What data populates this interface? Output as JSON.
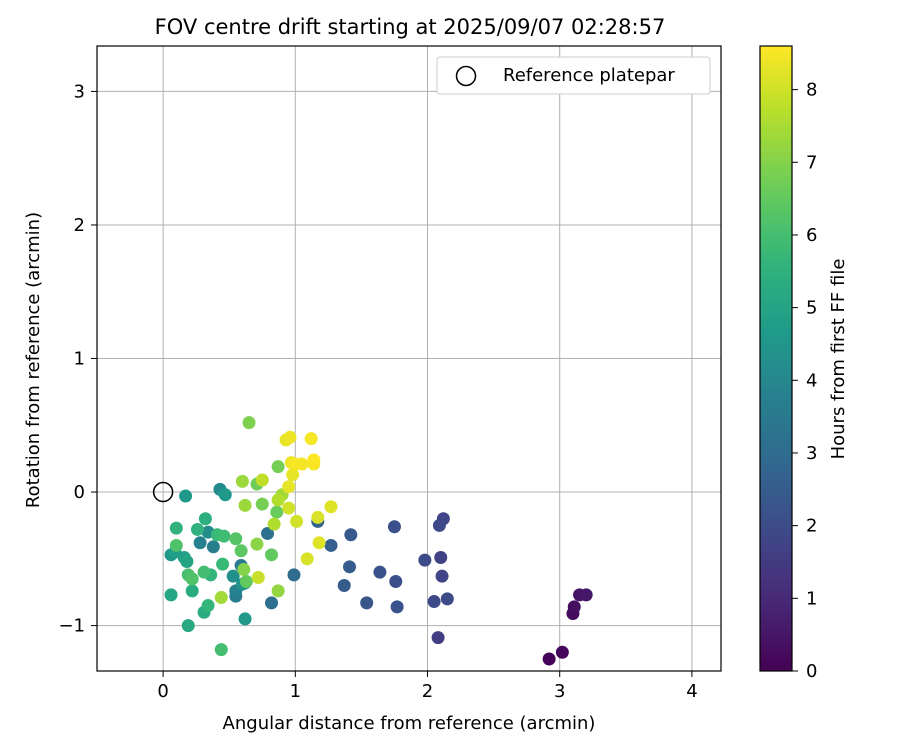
{
  "chart_data": {
    "type": "scatter",
    "title": "FOV centre drift starting at 2025/09/07 02:28:57",
    "xlabel": "Angular distance from reference (arcmin)",
    "ylabel": "Rotation from reference (arcmin)",
    "xlim": [
      -0.5,
      4.22
    ],
    "ylim": [
      -1.34,
      3.34
    ],
    "xticks": [
      0,
      1,
      2,
      3,
      4
    ],
    "xtick_labels": [
      "0",
      "1",
      "2",
      "3",
      "4"
    ],
    "yticks": [
      -1,
      0,
      1,
      2,
      3
    ],
    "ytick_labels": [
      "−1",
      "0",
      "1",
      "2",
      "3"
    ],
    "grid": true,
    "legend": {
      "position": "top-right",
      "entries": [
        "Reference platepar"
      ]
    },
    "reference_point": {
      "x": 0,
      "y": 0,
      "label": "Reference platepar"
    },
    "colorbar": {
      "label": "Hours from first FF file",
      "min": 0,
      "max": 8.6,
      "ticks": [
        0,
        1,
        2,
        3,
        4,
        5,
        6,
        7,
        8
      ],
      "tick_labels": [
        "0",
        "1",
        "2",
        "3",
        "4",
        "5",
        "6",
        "7",
        "8"
      ],
      "colormap": "viridis"
    },
    "points": [
      {
        "x": 2.92,
        "y": -1.25,
        "c": 0.05
      },
      {
        "x": 3.02,
        "y": -1.2,
        "c": 0.15
      },
      {
        "x": 3.1,
        "y": -0.91,
        "c": 0.25
      },
      {
        "x": 3.11,
        "y": -0.86,
        "c": 0.35
      },
      {
        "x": 3.15,
        "y": -0.77,
        "c": 0.45
      },
      {
        "x": 3.2,
        "y": -0.77,
        "c": 0.55
      },
      {
        "x": 2.08,
        "y": -1.09,
        "c": 1.6
      },
      {
        "x": 2.12,
        "y": -0.2,
        "c": 1.8
      },
      {
        "x": 2.09,
        "y": -0.25,
        "c": 1.9
      },
      {
        "x": 2.1,
        "y": -0.49,
        "c": 1.7
      },
      {
        "x": 2.11,
        "y": -0.63,
        "c": 1.8
      },
      {
        "x": 2.05,
        "y": -0.82,
        "c": 1.9
      },
      {
        "x": 2.15,
        "y": -0.8,
        "c": 2.0
      },
      {
        "x": 1.98,
        "y": -0.51,
        "c": 2.0
      },
      {
        "x": 1.75,
        "y": -0.26,
        "c": 2.1
      },
      {
        "x": 1.76,
        "y": -0.67,
        "c": 2.1
      },
      {
        "x": 1.77,
        "y": -0.86,
        "c": 2.2
      },
      {
        "x": 1.64,
        "y": -0.6,
        "c": 2.2
      },
      {
        "x": 1.54,
        "y": -0.83,
        "c": 2.3
      },
      {
        "x": 1.42,
        "y": -0.32,
        "c": 2.4
      },
      {
        "x": 1.41,
        "y": -0.56,
        "c": 2.5
      },
      {
        "x": 1.37,
        "y": -0.7,
        "c": 2.5
      },
      {
        "x": 1.27,
        "y": -0.4,
        "c": 2.6
      },
      {
        "x": 1.17,
        "y": -0.22,
        "c": 2.7
      },
      {
        "x": 0.99,
        "y": -0.62,
        "c": 3.0
      },
      {
        "x": 0.82,
        "y": -0.83,
        "c": 3.1
      },
      {
        "x": 0.79,
        "y": -0.31,
        "c": 3.2
      },
      {
        "x": 0.62,
        "y": -0.68,
        "c": 3.4
      },
      {
        "x": 0.59,
        "y": -0.55,
        "c": 3.5
      },
      {
        "x": 0.55,
        "y": -0.78,
        "c": 3.6
      },
      {
        "x": 0.55,
        "y": -0.74,
        "c": 3.8
      },
      {
        "x": 0.38,
        "y": -0.41,
        "c": 3.7
      },
      {
        "x": 0.28,
        "y": -0.38,
        "c": 3.8
      },
      {
        "x": 0.43,
        "y": 0.02,
        "c": 4.1
      },
      {
        "x": 0.34,
        "y": -0.3,
        "c": 4.2
      },
      {
        "x": 0.53,
        "y": -0.63,
        "c": 4.3
      },
      {
        "x": 0.6,
        "y": -0.69,
        "c": 4.4
      },
      {
        "x": 0.62,
        "y": -0.95,
        "c": 4.6
      },
      {
        "x": 0.47,
        "y": -0.02,
        "c": 4.6
      },
      {
        "x": 0.17,
        "y": -0.03,
        "c": 4.6
      },
      {
        "x": 0.06,
        "y": -0.47,
        "c": 4.6
      },
      {
        "x": 0.09,
        "y": -0.45,
        "c": 4.8
      },
      {
        "x": 0.16,
        "y": -0.49,
        "c": 4.9
      },
      {
        "x": 0.18,
        "y": -0.52,
        "c": 5.0
      },
      {
        "x": 0.06,
        "y": -0.77,
        "c": 5.1
      },
      {
        "x": 0.19,
        "y": -1.0,
        "c": 5.2
      },
      {
        "x": 0.31,
        "y": -0.9,
        "c": 5.3
      },
      {
        "x": 0.22,
        "y": -0.74,
        "c": 5.3
      },
      {
        "x": 0.32,
        "y": -0.2,
        "c": 5.4
      },
      {
        "x": 0.1,
        "y": -0.27,
        "c": 5.5
      },
      {
        "x": 0.26,
        "y": -0.28,
        "c": 5.5
      },
      {
        "x": 0.36,
        "y": -0.62,
        "c": 5.6
      },
      {
        "x": 0.34,
        "y": -0.85,
        "c": 5.7
      },
      {
        "x": 0.45,
        "y": -0.54,
        "c": 5.8
      },
      {
        "x": 0.41,
        "y": -0.32,
        "c": 5.8
      },
      {
        "x": 0.46,
        "y": -0.33,
        "c": 5.9
      },
      {
        "x": 0.44,
        "y": -1.18,
        "c": 6.0
      },
      {
        "x": 0.31,
        "y": -0.6,
        "c": 6.0
      },
      {
        "x": 0.19,
        "y": -0.62,
        "c": 6.1
      },
      {
        "x": 0.22,
        "y": -0.65,
        "c": 6.2
      },
      {
        "x": 0.1,
        "y": -0.4,
        "c": 6.2
      },
      {
        "x": 0.55,
        "y": -0.35,
        "c": 6.3
      },
      {
        "x": 0.59,
        "y": -0.44,
        "c": 6.4
      },
      {
        "x": 0.63,
        "y": -0.67,
        "c": 6.5
      },
      {
        "x": 0.82,
        "y": -0.47,
        "c": 6.5
      },
      {
        "x": 0.86,
        "y": -0.15,
        "c": 6.6
      },
      {
        "x": 0.71,
        "y": 0.06,
        "c": 6.7
      },
      {
        "x": 0.75,
        "y": -0.09,
        "c": 6.8
      },
      {
        "x": 0.87,
        "y": 0.19,
        "c": 6.8
      },
      {
        "x": 0.65,
        "y": 0.52,
        "c": 6.9
      },
      {
        "x": 0.61,
        "y": -0.58,
        "c": 7.0
      },
      {
        "x": 0.71,
        "y": -0.39,
        "c": 7.1
      },
      {
        "x": 0.87,
        "y": -0.74,
        "c": 7.2
      },
      {
        "x": 0.6,
        "y": 0.08,
        "c": 7.3
      },
      {
        "x": 0.62,
        "y": -0.1,
        "c": 7.3
      },
      {
        "x": 0.44,
        "y": -0.79,
        "c": 7.4
      },
      {
        "x": 0.9,
        "y": -0.02,
        "c": 7.4
      },
      {
        "x": 0.84,
        "y": -0.24,
        "c": 7.6
      },
      {
        "x": 0.87,
        "y": -0.06,
        "c": 7.6
      },
      {
        "x": 0.75,
        "y": 0.09,
        "c": 7.8
      },
      {
        "x": 0.72,
        "y": -0.64,
        "c": 7.9
      },
      {
        "x": 0.95,
        "y": -0.12,
        "c": 8.0
      },
      {
        "x": 1.01,
        "y": -0.22,
        "c": 8.0
      },
      {
        "x": 1.09,
        "y": -0.5,
        "c": 8.1
      },
      {
        "x": 1.17,
        "y": -0.19,
        "c": 8.1
      },
      {
        "x": 1.18,
        "y": -0.38,
        "c": 8.2
      },
      {
        "x": 1.27,
        "y": -0.11,
        "c": 8.2
      },
      {
        "x": 0.95,
        "y": 0.04,
        "c": 8.3
      },
      {
        "x": 0.98,
        "y": 0.13,
        "c": 8.3
      },
      {
        "x": 0.93,
        "y": 0.39,
        "c": 8.3
      },
      {
        "x": 0.96,
        "y": 0.41,
        "c": 8.4
      },
      {
        "x": 0.97,
        "y": 0.22,
        "c": 8.4
      },
      {
        "x": 1.0,
        "y": 0.21,
        "c": 8.5
      },
      {
        "x": 1.05,
        "y": 0.21,
        "c": 8.5
      },
      {
        "x": 1.12,
        "y": 0.4,
        "c": 8.5
      },
      {
        "x": 1.14,
        "y": 0.21,
        "c": 8.5
      },
      {
        "x": 1.14,
        "y": 0.24,
        "c": 8.6
      }
    ]
  }
}
